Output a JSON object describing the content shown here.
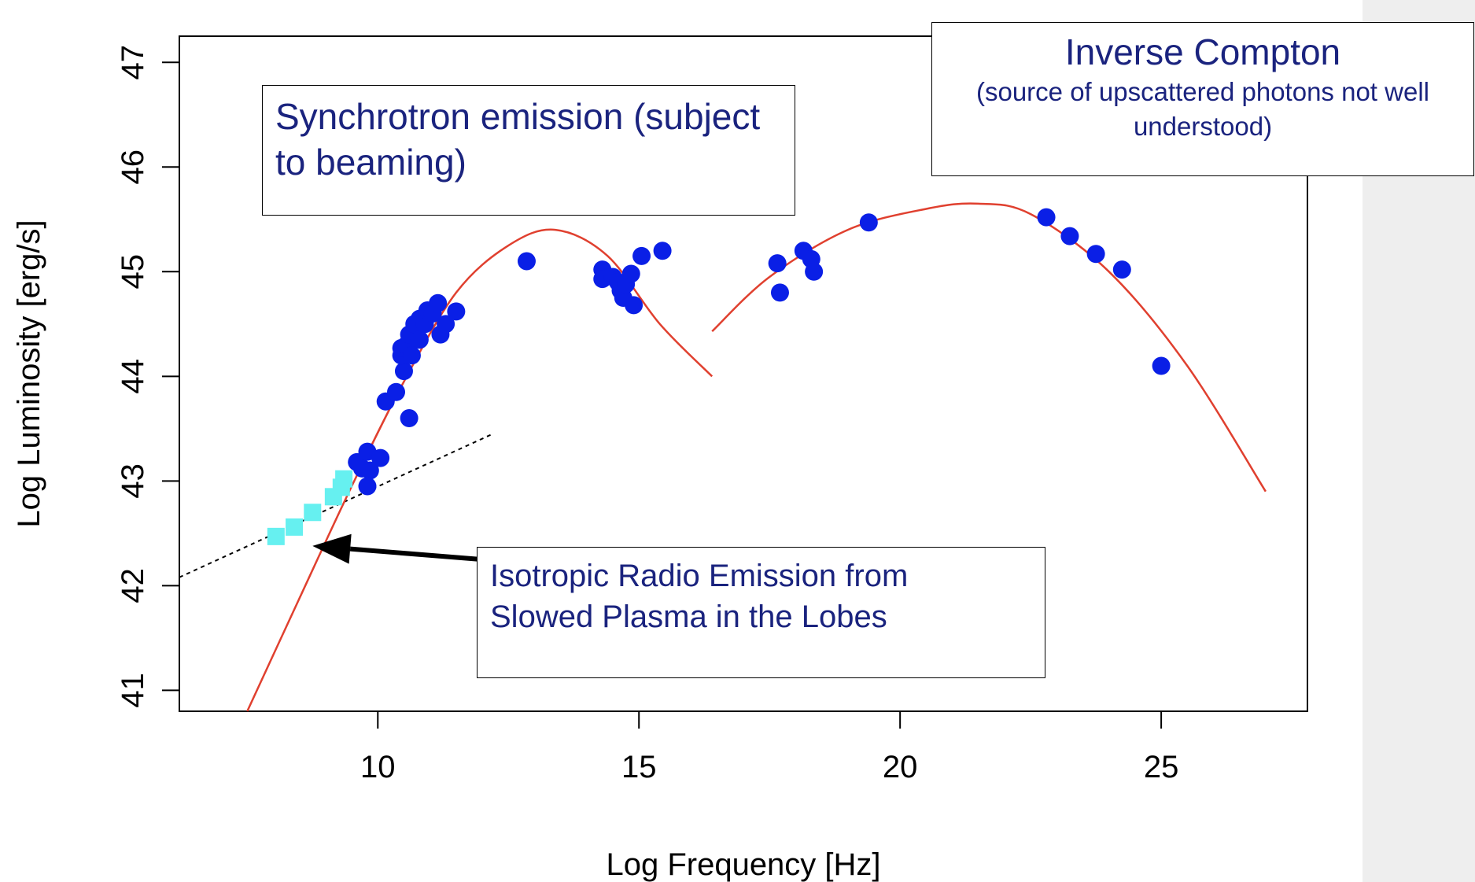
{
  "chart_data": {
    "type": "scatter",
    "xlabel": "Log Frequency [Hz]",
    "ylabel": "Log Luminosity [erg/s]",
    "xlim": [
      6.2,
      27.8
    ],
    "ylim": [
      40.8,
      47.25
    ],
    "xticks": [
      10,
      15,
      20,
      25
    ],
    "yticks": [
      41,
      42,
      43,
      44,
      45,
      46,
      47
    ],
    "grid": false,
    "colors": {
      "points": "#0a1fe6",
      "radio_squares": "#66f0f0",
      "fit_curve": "#e0402f",
      "dotted_line": "#000000",
      "annotation_text": "#1a237e"
    },
    "series": [
      {
        "marker": "circle",
        "points": [
          [
            9.6,
            43.18
          ],
          [
            9.7,
            43.12
          ],
          [
            9.8,
            43.28
          ],
          [
            9.85,
            43.1
          ],
          [
            10.05,
            43.22
          ],
          [
            9.8,
            42.95
          ],
          [
            10.15,
            43.76
          ],
          [
            10.35,
            43.85
          ],
          [
            10.5,
            44.05
          ],
          [
            10.45,
            44.2
          ],
          [
            10.45,
            44.27
          ],
          [
            10.55,
            44.3
          ],
          [
            10.6,
            44.4
          ],
          [
            10.65,
            44.2
          ],
          [
            10.7,
            44.5
          ],
          [
            10.8,
            44.35
          ],
          [
            10.8,
            44.55
          ],
          [
            10.9,
            44.5
          ],
          [
            10.95,
            44.63
          ],
          [
            11.05,
            44.6
          ],
          [
            11.15,
            44.7
          ],
          [
            11.2,
            44.4
          ],
          [
            11.3,
            44.5
          ],
          [
            11.5,
            44.62
          ],
          [
            10.6,
            43.6
          ],
          [
            12.85,
            45.1
          ],
          [
            14.3,
            45.02
          ],
          [
            14.3,
            44.93
          ],
          [
            14.5,
            44.95
          ],
          [
            14.6,
            44.9
          ],
          [
            14.65,
            44.82
          ],
          [
            14.7,
            44.75
          ],
          [
            14.75,
            44.88
          ],
          [
            14.85,
            44.98
          ],
          [
            14.9,
            44.68
          ],
          [
            15.05,
            45.15
          ],
          [
            15.45,
            45.2
          ],
          [
            17.65,
            45.08
          ],
          [
            17.7,
            44.8
          ],
          [
            18.15,
            45.2
          ],
          [
            18.3,
            45.12
          ],
          [
            18.35,
            45.0
          ],
          [
            19.4,
            45.47
          ],
          [
            22.8,
            45.52
          ],
          [
            23.25,
            45.34
          ],
          [
            23.75,
            45.17
          ],
          [
            24.25,
            45.02
          ],
          [
            25.0,
            44.1
          ]
        ]
      },
      {
        "marker": "square",
        "points": [
          [
            8.05,
            42.47
          ],
          [
            8.4,
            42.56
          ],
          [
            8.75,
            42.7
          ],
          [
            9.15,
            42.85
          ],
          [
            9.3,
            42.94
          ],
          [
            9.35,
            43.02
          ]
        ]
      }
    ],
    "lines": [
      {
        "style": "dotted",
        "x": [
          6.2,
          12.2
        ],
        "y": [
          42.08,
          43.45
        ]
      },
      {
        "style": "solid-curve",
        "segment": "synchrotron",
        "x": [
          7.5,
          8.5,
          9.5,
          10.5,
          11.5,
          12.5,
          13.4,
          14.4,
          15.4,
          16.4
        ],
        "y": [
          40.8,
          41.88,
          42.95,
          43.95,
          44.8,
          45.25,
          45.4,
          45.15,
          44.5,
          44.0
        ]
      },
      {
        "style": "solid-curve",
        "segment": "inverse-compton",
        "x": [
          16.4,
          17.5,
          19.0,
          20.5,
          21.5,
          22.5,
          24.0,
          25.5,
          27.0
        ],
        "y": [
          44.43,
          44.95,
          45.4,
          45.6,
          45.65,
          45.55,
          45.0,
          44.1,
          42.9
        ]
      }
    ],
    "annotations": {
      "synchrotron": [
        "Synchrotron emission (subject",
        "to beaming)"
      ],
      "inverse_compton_title": "Inverse Compton",
      "inverse_compton_note": [
        "(source of upscattered photons not well",
        "understood)"
      ],
      "isotropic": [
        "Isotropic Radio Emission from",
        "Slowed Plasma in the Lobes"
      ]
    },
    "arrow": {
      "from": [
        12.0,
        42.25
      ],
      "to": [
        8.75,
        42.38
      ]
    }
  }
}
